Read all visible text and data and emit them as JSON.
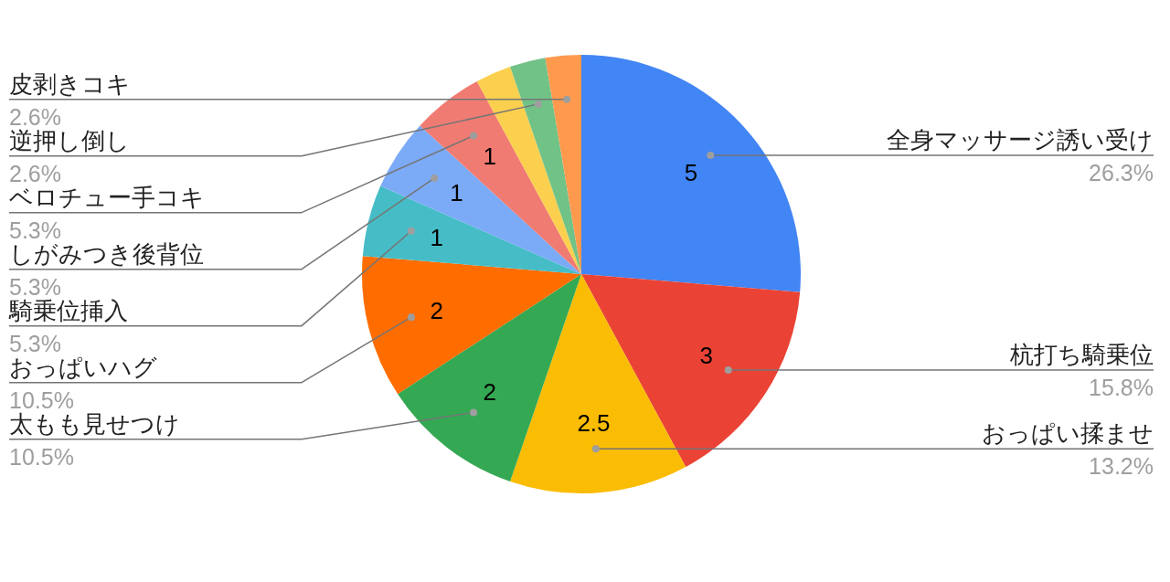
{
  "chart_data": {
    "type": "pie",
    "categories": [
      "全身マッサージ誘い受け",
      "杭打ち騎乗位",
      "おっぱい揉ませ",
      "太もも見せつけ",
      "おっぱいハグ",
      "騎乗位挿入",
      "しがみつき後背位",
      "ベロチュー手コキ",
      null,
      "逆押し倒し",
      "皮剥きコキ"
    ],
    "values": [
      5,
      3,
      2.5,
      2,
      2,
      1,
      1,
      1,
      0.5,
      0.5,
      0.5
    ],
    "colors": [
      "#4285f4",
      "#ea4335",
      "#fbbc04",
      "#34a853",
      "#ff6d01",
      "#46bdc6",
      "#7baaf7",
      "#f07b72",
      "#fcd04f",
      "#71c287",
      "#ff994d"
    ],
    "value_labels": [
      "5",
      "3",
      "2.5",
      "2",
      "2",
      "1",
      "1",
      "1",
      null,
      null,
      null
    ],
    "annotations": [
      "26.3%",
      "15.8%",
      "13.2%",
      "10.5%",
      "10.5%",
      "5.3%",
      "5.3%",
      "5.3%",
      "2.6%",
      "2.6%"
    ]
  }
}
